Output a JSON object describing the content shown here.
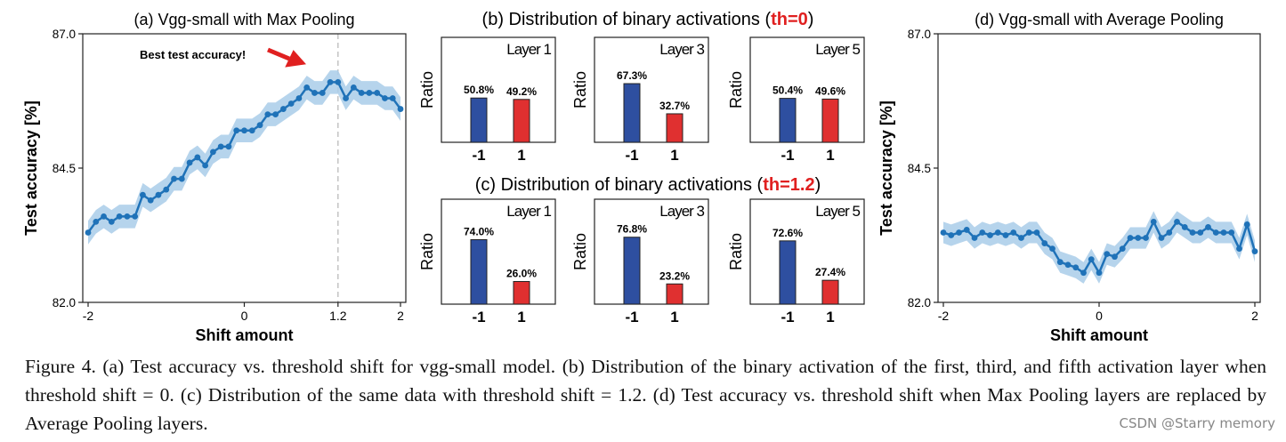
{
  "figure": {
    "caption_lines": [
      "Figure 4. (a) Test accuracy vs.  threshold shift for vgg-small model. (b) Distribution of the binary activation of the first, third, and fifth",
      "activation layer when threshold shift = 0. (c) Distribution of the same data with threshold shift = 1.2. (d) Test accuracy vs. threshold shift",
      "when Max Pooling layers are replaced by Average Pooling layers."
    ],
    "watermark": "CSDN @Starry memory"
  },
  "colors": {
    "line": "#1f72b8",
    "band": "#a9cde9",
    "bar_neg": "#2e4fa0",
    "bar_pos": "#e03030",
    "highlight": "#e02020"
  },
  "chart_data": [
    {
      "id": "a",
      "type": "line",
      "title": "(a)  Vgg-small with Max Pooling",
      "xlabel": "Shift amount",
      "ylabel": "Test accuracy [%]",
      "xlim": [
        -2,
        2
      ],
      "ylim": [
        82.0,
        87.0
      ],
      "xticks": [
        "-2",
        "0",
        "1.2",
        "2"
      ],
      "xtick_values": [
        -2,
        0,
        1.2,
        2
      ],
      "yticks": [
        "82.0",
        "84.5",
        "87.0"
      ],
      "ytick_values": [
        82.0,
        84.5,
        87.0
      ],
      "vline": 1.2,
      "annotation": "Best test accuracy!",
      "x": [
        -2.0,
        -1.9,
        -1.8,
        -1.7,
        -1.6,
        -1.5,
        -1.4,
        -1.3,
        -1.2,
        -1.1,
        -1.0,
        -0.9,
        -0.8,
        -0.7,
        -0.6,
        -0.5,
        -0.4,
        -0.3,
        -0.2,
        -0.1,
        0.0,
        0.1,
        0.2,
        0.3,
        0.4,
        0.5,
        0.6,
        0.7,
        0.8,
        0.9,
        1.0,
        1.1,
        1.2,
        1.3,
        1.4,
        1.5,
        1.6,
        1.7,
        1.8,
        1.9,
        2.0
      ],
      "y": [
        83.3,
        83.5,
        83.6,
        83.5,
        83.6,
        83.6,
        83.6,
        84.0,
        83.9,
        84.0,
        84.1,
        84.3,
        84.3,
        84.6,
        84.7,
        84.55,
        84.8,
        84.9,
        84.9,
        85.2,
        85.2,
        85.2,
        85.3,
        85.5,
        85.5,
        85.6,
        85.7,
        85.8,
        86.0,
        85.9,
        85.9,
        86.1,
        86.1,
        85.8,
        86.0,
        85.9,
        85.9,
        85.9,
        85.8,
        85.8,
        85.6
      ],
      "band": 0.22
    },
    {
      "id": "d",
      "type": "line",
      "title": "(d)  Vgg-small with Average Pooling",
      "xlabel": "Shift amount",
      "ylabel": "Test accuracy [%]",
      "xlim": [
        -2,
        2
      ],
      "ylim": [
        82.0,
        87.0
      ],
      "xticks": [
        "-2",
        "0",
        "2"
      ],
      "xtick_values": [
        -2,
        0,
        2
      ],
      "yticks": [
        "82.0",
        "84.5",
        "87.0"
      ],
      "ytick_values": [
        82.0,
        84.5,
        87.0
      ],
      "x": [
        -2.0,
        -1.9,
        -1.8,
        -1.7,
        -1.6,
        -1.5,
        -1.4,
        -1.3,
        -1.2,
        -1.1,
        -1.0,
        -0.9,
        -0.8,
        -0.7,
        -0.6,
        -0.5,
        -0.4,
        -0.3,
        -0.2,
        -0.1,
        0.0,
        0.1,
        0.2,
        0.3,
        0.4,
        0.5,
        0.6,
        0.7,
        0.8,
        0.9,
        1.0,
        1.1,
        1.2,
        1.3,
        1.4,
        1.5,
        1.6,
        1.7,
        1.8,
        1.9,
        2.0
      ],
      "y": [
        83.3,
        83.25,
        83.3,
        83.35,
        83.2,
        83.3,
        83.25,
        83.3,
        83.25,
        83.3,
        83.2,
        83.3,
        83.3,
        83.1,
        83.0,
        82.75,
        82.7,
        82.65,
        82.55,
        82.8,
        82.55,
        82.9,
        82.85,
        83.0,
        83.2,
        83.2,
        83.2,
        83.5,
        83.2,
        83.3,
        83.5,
        83.4,
        83.3,
        83.3,
        83.4,
        83.3,
        83.3,
        83.3,
        83.0,
        83.45,
        82.95
      ],
      "band": 0.2
    },
    {
      "id": "b",
      "type": "bar",
      "title_prefix": "(b) Distribution of binary activations (",
      "title_highlight": "th=0",
      "title_suffix": ")",
      "panels": [
        {
          "label": "Layer 1",
          "ylabel": "Ratio",
          "categories": [
            "-1",
            "1"
          ],
          "values": [
            50.8,
            49.2
          ],
          "value_labels": [
            "50.8%",
            "49.2%"
          ]
        },
        {
          "label": "Layer 3",
          "ylabel": "Ratio",
          "categories": [
            "-1",
            "1"
          ],
          "values": [
            67.3,
            32.7
          ],
          "value_labels": [
            "67.3%",
            "32.7%"
          ]
        },
        {
          "label": "Layer 5",
          "ylabel": "Ratio",
          "categories": [
            "-1",
            "1"
          ],
          "values": [
            50.4,
            49.6
          ],
          "value_labels": [
            "50.4%",
            "49.6%"
          ]
        }
      ]
    },
    {
      "id": "c",
      "type": "bar",
      "title_prefix": "(c) Distribution of binary activations (",
      "title_highlight": "th=1.2",
      "title_suffix": ")",
      "panels": [
        {
          "label": "Layer 1",
          "ylabel": "Ratio",
          "categories": [
            "-1",
            "1"
          ],
          "values": [
            74.0,
            26.0
          ],
          "value_labels": [
            "74.0%",
            "26.0%"
          ]
        },
        {
          "label": "Layer 3",
          "ylabel": "Ratio",
          "categories": [
            "-1",
            "1"
          ],
          "values": [
            76.8,
            23.2
          ],
          "value_labels": [
            "76.8%",
            "23.2%"
          ]
        },
        {
          "label": "Layer 5",
          "ylabel": "Ratio",
          "categories": [
            "-1",
            "1"
          ],
          "values": [
            72.6,
            27.4
          ],
          "value_labels": [
            "72.6%",
            "27.4%"
          ]
        }
      ]
    }
  ]
}
